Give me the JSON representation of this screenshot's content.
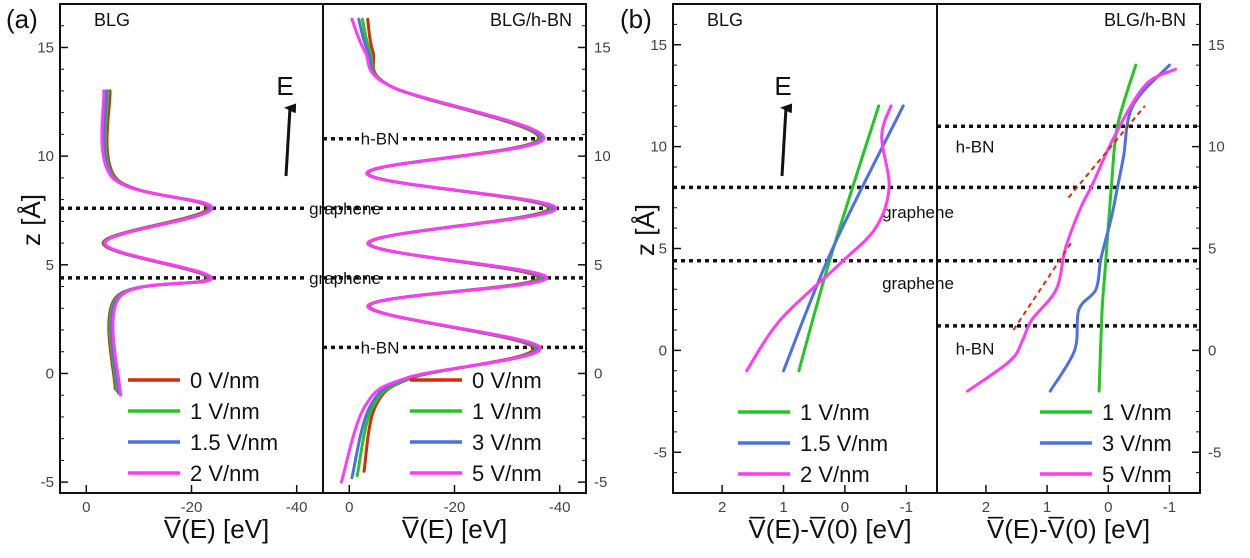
{
  "chart_data": {
    "panel_labels": [
      "(a)",
      "(b)"
    ],
    "ytick_labels": [
      "-5",
      "0",
      "5",
      "10",
      "15"
    ],
    "arrow_label": "E",
    "colors": {
      "red": "#d62c0a",
      "green": "#22c722",
      "blue": "#4f6fe6",
      "magenta": "#ff3cf2"
    },
    "charts": [
      {
        "type": "line",
        "title": "BLG",
        "xlabel": "V̅(E) [eV]",
        "ylabel": "z [Å]",
        "xlim": [
          5,
          -45
        ],
        "ylim": [
          -5.5,
          17
        ],
        "xtick_labels": [
          "0",
          "-20",
          "-40"
        ],
        "annotations": [
          {
            "text": "graphene",
            "z": 7.6
          },
          {
            "text": "graphene",
            "z": 4.4
          }
        ],
        "dotted_levels": [
          7.6,
          4.4
        ],
        "legend": [
          "0 V/nm",
          "1 V/nm",
          "1.5 V/nm",
          "2 V/nm"
        ],
        "series": [
          {
            "name": "0 V/nm",
            "color": "red",
            "points": [
              [
                -5.5,
                -0.7
              ],
              [
                -5.6,
                3.5
              ],
              [
                -23,
                4.4
              ],
              [
                -3.2,
                6
              ],
              [
                -23,
                7.6
              ],
              [
                -5.6,
                9
              ],
              [
                -4.5,
                13
              ]
            ]
          },
          {
            "name": "1 V/nm",
            "color": "green",
            "points": [
              [
                -5.8,
                -0.8
              ],
              [
                -5.8,
                3.5
              ],
              [
                -23.3,
                4.4
              ],
              [
                -3.4,
                6
              ],
              [
                -23.4,
                7.6
              ],
              [
                -5.4,
                9
              ],
              [
                -4.1,
                13
              ]
            ]
          },
          {
            "name": "1.5 V/nm",
            "color": "blue",
            "points": [
              [
                -6.1,
                -0.9
              ],
              [
                -6,
                3.5
              ],
              [
                -23.5,
                4.4
              ],
              [
                -3.5,
                6
              ],
              [
                -23.6,
                7.6
              ],
              [
                -5.2,
                9
              ],
              [
                -3.8,
                13
              ]
            ]
          },
          {
            "name": "2 V/nm",
            "color": "magenta",
            "points": [
              [
                -6.5,
                -1
              ],
              [
                -6.3,
                3.5
              ],
              [
                -23.8,
                4.4
              ],
              [
                -3.6,
                6
              ],
              [
                -23.9,
                7.6
              ],
              [
                -5,
                9
              ],
              [
                -3.3,
                13
              ]
            ]
          }
        ]
      },
      {
        "type": "line",
        "title": "BLG/h-BN",
        "xlabel": "V̅(E) [eV]",
        "xlim": [
          5,
          -45
        ],
        "ylim": [
          -5.5,
          17
        ],
        "xtick_labels": [
          "0",
          "-20",
          "-40"
        ],
        "annotations": [
          {
            "text": "h-BN",
            "z": 10.8
          },
          {
            "text": "h-BN",
            "z": 1.2
          }
        ],
        "dotted_levels": [
          10.8,
          7.6,
          4.4,
          1.2
        ],
        "legend": [
          "0 V/nm",
          "1 V/nm",
          "3 V/nm",
          "5 V/nm"
        ],
        "series": [
          {
            "name": "0 V/nm",
            "color": "red",
            "points": [
              [
                -2.8,
                -4.5
              ],
              [
                -5,
                -1.5
              ],
              [
                -12,
                -0.2
              ],
              [
                -35,
                1.2
              ],
              [
                -3.8,
                3.1
              ],
              [
                -36,
                4.4
              ],
              [
                -3.8,
                6
              ],
              [
                -38,
                7.6
              ],
              [
                -3.6,
                9.2
              ],
              [
                -36,
                10.8
              ],
              [
                -8,
                13.2
              ],
              [
                -4.5,
                14.8
              ],
              [
                -3.5,
                16.3
              ]
            ]
          },
          {
            "name": "1 V/nm",
            "color": "green",
            "points": [
              [
                -1.5,
                -4.7
              ],
              [
                -4.5,
                -1.5
              ],
              [
                -12,
                -0.2
              ],
              [
                -35.5,
                1.2
              ],
              [
                -3.7,
                3.1
              ],
              [
                -36.5,
                4.4
              ],
              [
                -3.7,
                6
              ],
              [
                -38.4,
                7.6
              ],
              [
                -3.5,
                9.2
              ],
              [
                -36.3,
                10.8
              ],
              [
                -8,
                13.2
              ],
              [
                -4,
                14.8
              ],
              [
                -2.5,
                16.3
              ]
            ]
          },
          {
            "name": "3 V/nm",
            "color": "blue",
            "points": [
              [
                -0.5,
                -4.8
              ],
              [
                -4,
                -1.5
              ],
              [
                -11.5,
                -0.2
              ],
              [
                -35.8,
                1.2
              ],
              [
                -3.6,
                3.1
              ],
              [
                -37,
                4.4
              ],
              [
                -3.6,
                6
              ],
              [
                -38.8,
                7.6
              ],
              [
                -3.4,
                9.2
              ],
              [
                -36.6,
                10.8
              ],
              [
                -8,
                13.2
              ],
              [
                -3.6,
                14.8
              ],
              [
                -1.8,
                16.3
              ]
            ]
          },
          {
            "name": "5 V/nm",
            "color": "magenta",
            "points": [
              [
                1.5,
                -5
              ],
              [
                -3,
                -1.5
              ],
              [
                -11,
                -0.2
              ],
              [
                -36.3,
                1.2
              ],
              [
                -3.5,
                3.1
              ],
              [
                -37.6,
                4.4
              ],
              [
                -3.5,
                6
              ],
              [
                -39.3,
                7.6
              ],
              [
                -3.3,
                9.2
              ],
              [
                -37,
                10.8
              ],
              [
                -8,
                13.2
              ],
              [
                -3,
                14.8
              ],
              [
                -0.5,
                16.3
              ]
            ]
          }
        ]
      },
      {
        "type": "line",
        "title": "BLG",
        "xlabel": "V̅(E)-V̅(0) [eV]",
        "ylabel": "z [Å]",
        "xlim": [
          2.8,
          -1.5
        ],
        "ylim": [
          -7,
          17
        ],
        "xtick_labels": [
          "2",
          "1",
          "0",
          "-1"
        ],
        "annotations": [
          {
            "text": "graphene",
            "z": 6.8
          },
          {
            "text": "graphene",
            "z": 3.3
          }
        ],
        "dotted_levels": [
          8.0,
          4.4
        ],
        "legend": [
          "1 V/nm",
          "1.5 V/nm",
          "2 V/nm"
        ],
        "series": [
          {
            "name": "1 V/nm",
            "color": "green",
            "points": [
              [
                0.75,
                -1
              ],
              [
                0.25,
                4.4
              ],
              [
                -0.55,
                12
              ]
            ]
          },
          {
            "name": "1.5 V/nm",
            "color": "blue",
            "points": [
              [
                1,
                -1
              ],
              [
                0.2,
                5
              ],
              [
                -0.95,
                12
              ]
            ]
          },
          {
            "name": "2 V/nm",
            "color": "magenta",
            "points": [
              [
                1.6,
                -1
              ],
              [
                1.05,
                1.5
              ],
              [
                0.1,
                4.2
              ],
              [
                -0.5,
                6
              ],
              [
                -0.72,
                8
              ],
              [
                -0.6,
                10.5
              ],
              [
                -0.75,
                12
              ]
            ]
          }
        ]
      },
      {
        "type": "line",
        "title": "BLG/h-BN",
        "xlabel": "V̅(E)-V̅(0) [eV]",
        "xlim": [
          2.8,
          -1.5
        ],
        "ylim": [
          -7,
          17
        ],
        "xtick_labels": [
          "2",
          "1",
          "0",
          "-1"
        ],
        "annotations": [
          {
            "text": "h-BN",
            "z": 10.0
          },
          {
            "text": "h-BN",
            "z": 0.1
          }
        ],
        "dotted_levels": [
          11,
          8,
          4.4,
          1.2
        ],
        "legend": [
          "1 V/nm",
          "3 V/nm",
          "5 V/nm"
        ],
        "series": [
          {
            "name": "1 V/nm",
            "color": "green",
            "points": [
              [
                0.15,
                -2
              ],
              [
                0.1,
                2
              ],
              [
                0.05,
                4
              ],
              [
                -0.05,
                8
              ],
              [
                -0.15,
                11
              ],
              [
                -0.45,
                14
              ]
            ]
          },
          {
            "name": "3 V/nm",
            "color": "blue",
            "points": [
              [
                0.95,
                -2
              ],
              [
                0.55,
                0
              ],
              [
                0.48,
                2
              ],
              [
                0.2,
                3
              ],
              [
                0.12,
                4.5
              ],
              [
                -0.05,
                6.5
              ],
              [
                -0.15,
                8
              ],
              [
                -0.25,
                9.5
              ],
              [
                -0.4,
                12
              ],
              [
                -1,
                14
              ]
            ]
          },
          {
            "name": "5 V/nm",
            "color": "magenta",
            "points": [
              [
                2.3,
                -2
              ],
              [
                1.6,
                -0.5
              ],
              [
                1.4,
                0.5
              ],
              [
                1.25,
                1.5
              ],
              [
                0.85,
                3
              ],
              [
                0.7,
                5
              ],
              [
                0.45,
                7
              ],
              [
                0.25,
                8.2
              ],
              [
                -0.1,
                10.5
              ],
              [
                -0.6,
                13
              ],
              [
                -1.1,
                13.8
              ]
            ]
          }
        ],
        "dashed_fits": [
          {
            "color": "red",
            "points": [
              [
                1.55,
                1
              ],
              [
                0.6,
                5.3
              ]
            ]
          },
          {
            "color": "red",
            "points": [
              [
                0.65,
                7.5
              ],
              [
                -0.6,
                12
              ]
            ]
          }
        ]
      }
    ]
  }
}
